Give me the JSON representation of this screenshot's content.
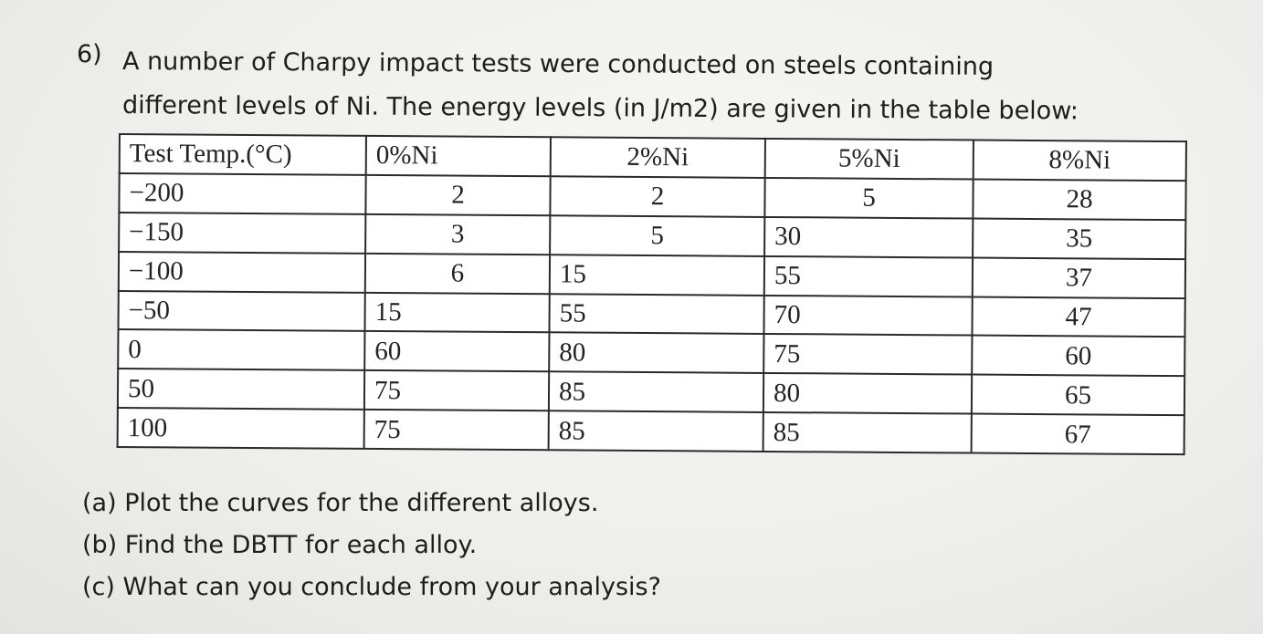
{
  "question": {
    "number": "6)",
    "line1": "A number of Charpy impact tests were conducted on steels containing",
    "line2": "different levels of Ni. The energy levels (in J/m2) are given in the table below:"
  },
  "table": {
    "headers": [
      "Test Temp.(°C)",
      "0%Ni",
      "2%Ni",
      "5%Ni",
      "8%Ni"
    ],
    "rows": [
      [
        "−200",
        "2",
        "2",
        "5",
        "28"
      ],
      [
        "−150",
        "3",
        "5",
        "30",
        "35"
      ],
      [
        "−100",
        "6",
        "15",
        "55",
        "37"
      ],
      [
        "−50",
        "15",
        "55",
        "70",
        "47"
      ],
      [
        "0",
        "60",
        "80",
        "75",
        "60"
      ],
      [
        "50",
        "75",
        "85",
        "80",
        "65"
      ],
      [
        "100",
        "75",
        "85",
        "85",
        "67"
      ]
    ]
  },
  "parts": [
    "(a) Plot the curves for the different alloys.",
    "(b) Find the DBTT for each alloy.",
    "(c) What can you conclude from your analysis?"
  ]
}
